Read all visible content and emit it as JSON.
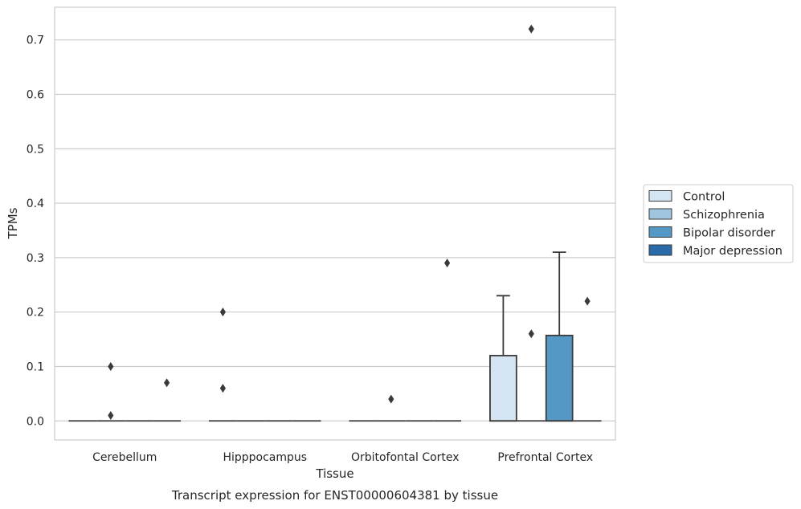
{
  "chart_data": {
    "type": "box",
    "caption": "Transcript expression for ENST00000604381 by tissue",
    "xlabel": "Tissue",
    "ylabel": "TPMs",
    "ylim": [
      -0.035,
      0.76
    ],
    "yticks": [
      0.0,
      0.1,
      0.2,
      0.3,
      0.4,
      0.5,
      0.6,
      0.7
    ],
    "ytick_labels": [
      "0.0",
      "0.1",
      "0.2",
      "0.3",
      "0.4",
      "0.5",
      "0.6",
      "0.7"
    ],
    "grid": true,
    "legend_position": "right",
    "categories": [
      "Cerebellum",
      "Hipppocampus",
      "Orbitofontal Cortex",
      "Prefrontal Cortex"
    ],
    "series": [
      {
        "name": "Control",
        "color": "#d4e4f3",
        "boxes": [
          {
            "min": 0,
            "q1": 0,
            "median": 0,
            "q3": 0,
            "max": 0,
            "outliers": []
          },
          {
            "min": 0,
            "q1": 0,
            "median": 0,
            "q3": 0,
            "max": 0,
            "outliers": [
              0.2,
              0.06
            ]
          },
          {
            "min": 0,
            "q1": 0,
            "median": 0,
            "q3": 0,
            "max": 0,
            "outliers": []
          },
          {
            "min": 0,
            "q1": 0,
            "median": 0,
            "q3": 0.12,
            "max": 0.23,
            "outliers": []
          }
        ]
      },
      {
        "name": "Schizophrenia",
        "color": "#9fc6de",
        "boxes": [
          {
            "min": 0,
            "q1": 0,
            "median": 0,
            "q3": 0,
            "max": 0,
            "outliers": [
              0.1,
              0.01
            ]
          },
          {
            "min": 0,
            "q1": 0,
            "median": 0,
            "q3": 0,
            "max": 0,
            "outliers": []
          },
          {
            "min": 0,
            "q1": 0,
            "median": 0,
            "q3": 0,
            "max": 0,
            "outliers": [
              0.04
            ]
          },
          {
            "min": 0,
            "q1": 0,
            "median": 0,
            "q3": 0,
            "max": 0,
            "outliers": [
              0.72,
              0.16
            ]
          }
        ]
      },
      {
        "name": "Bipolar disorder",
        "color": "#5499c6",
        "boxes": [
          {
            "min": 0,
            "q1": 0,
            "median": 0,
            "q3": 0,
            "max": 0,
            "outliers": []
          },
          {
            "min": 0,
            "q1": 0,
            "median": 0,
            "q3": 0,
            "max": 0,
            "outliers": []
          },
          {
            "min": 0,
            "q1": 0,
            "median": 0,
            "q3": 0,
            "max": 0,
            "outliers": []
          },
          {
            "min": 0,
            "q1": 0,
            "median": 0,
            "q3": 0.157,
            "max": 0.31,
            "outliers": []
          }
        ]
      },
      {
        "name": "Major depression",
        "color": "#2b6aa8",
        "boxes": [
          {
            "min": 0,
            "q1": 0,
            "median": 0,
            "q3": 0,
            "max": 0,
            "outliers": [
              0.07
            ]
          },
          {
            "min": 0,
            "q1": 0,
            "median": 0,
            "q3": 0,
            "max": 0,
            "outliers": []
          },
          {
            "min": 0,
            "q1": 0,
            "median": 0,
            "q3": 0,
            "max": 0,
            "outliers": [
              0.29
            ]
          },
          {
            "min": 0,
            "q1": 0,
            "median": 0,
            "q3": 0,
            "max": 0,
            "outliers": [
              0.22
            ]
          }
        ]
      }
    ]
  }
}
